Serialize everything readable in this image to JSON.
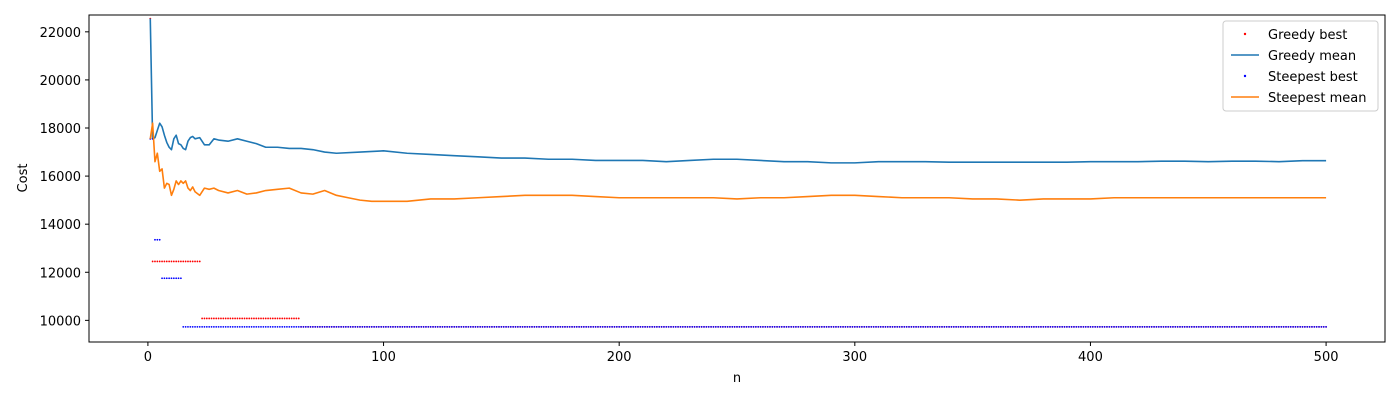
{
  "chart_data": {
    "type": "line",
    "title": "",
    "xlabel": "n",
    "ylabel": "Cost",
    "xlim": [
      -25,
      525
    ],
    "ylim": [
      9100,
      22700
    ],
    "xticks": [
      0,
      100,
      200,
      300,
      400,
      500
    ],
    "xtick_labels": [
      "0",
      "100",
      "200",
      "300",
      "400",
      "500"
    ],
    "yticks": [
      10000,
      12000,
      14000,
      16000,
      18000,
      20000,
      22000
    ],
    "ytick_labels": [
      "10000",
      "12000",
      "14000",
      "16000",
      "18000",
      "20000",
      "22000"
    ],
    "grid": false,
    "legend_position": "top-right",
    "series": [
      {
        "name": "Greedy best",
        "kind": "step-points",
        "color": "#ff0000",
        "n_max": 500,
        "segments": [
          {
            "from": 1,
            "to": 1,
            "value": 22550
          },
          {
            "from": 2,
            "to": 22,
            "value": 12450
          },
          {
            "from": 23,
            "to": 64,
            "value": 10080
          },
          {
            "from": 65,
            "to": 500,
            "value": 9730
          }
        ]
      },
      {
        "name": "Greedy mean",
        "kind": "line",
        "color": "#1f77b4",
        "points": [
          [
            1,
            22550
          ],
          [
            2,
            17550
          ],
          [
            3,
            17600
          ],
          [
            4,
            17900
          ],
          [
            5,
            18200
          ],
          [
            6,
            18050
          ],
          [
            7,
            17700
          ],
          [
            8,
            17400
          ],
          [
            9,
            17200
          ],
          [
            10,
            17100
          ],
          [
            11,
            17550
          ],
          [
            12,
            17700
          ],
          [
            13,
            17350
          ],
          [
            14,
            17300
          ],
          [
            15,
            17150
          ],
          [
            16,
            17100
          ],
          [
            17,
            17450
          ],
          [
            18,
            17600
          ],
          [
            19,
            17650
          ],
          [
            20,
            17550
          ],
          [
            22,
            17600
          ],
          [
            24,
            17300
          ],
          [
            26,
            17300
          ],
          [
            28,
            17550
          ],
          [
            30,
            17500
          ],
          [
            34,
            17450
          ],
          [
            38,
            17550
          ],
          [
            42,
            17450
          ],
          [
            46,
            17350
          ],
          [
            50,
            17200
          ],
          [
            55,
            17200
          ],
          [
            60,
            17150
          ],
          [
            65,
            17150
          ],
          [
            70,
            17100
          ],
          [
            75,
            17000
          ],
          [
            80,
            16950
          ],
          [
            90,
            17000
          ],
          [
            100,
            17050
          ],
          [
            110,
            16950
          ],
          [
            120,
            16900
          ],
          [
            130,
            16850
          ],
          [
            140,
            16800
          ],
          [
            150,
            16750
          ],
          [
            160,
            16750
          ],
          [
            170,
            16700
          ],
          [
            180,
            16700
          ],
          [
            190,
            16650
          ],
          [
            200,
            16650
          ],
          [
            210,
            16650
          ],
          [
            220,
            16600
          ],
          [
            230,
            16650
          ],
          [
            240,
            16700
          ],
          [
            250,
            16700
          ],
          [
            260,
            16650
          ],
          [
            270,
            16600
          ],
          [
            280,
            16600
          ],
          [
            290,
            16550
          ],
          [
            300,
            16550
          ],
          [
            310,
            16600
          ],
          [
            320,
            16600
          ],
          [
            330,
            16600
          ],
          [
            340,
            16580
          ],
          [
            350,
            16580
          ],
          [
            360,
            16580
          ],
          [
            370,
            16580
          ],
          [
            380,
            16580
          ],
          [
            390,
            16580
          ],
          [
            400,
            16600
          ],
          [
            410,
            16600
          ],
          [
            420,
            16600
          ],
          [
            430,
            16620
          ],
          [
            440,
            16620
          ],
          [
            450,
            16600
          ],
          [
            460,
            16620
          ],
          [
            470,
            16620
          ],
          [
            480,
            16600
          ],
          [
            490,
            16640
          ],
          [
            500,
            16640
          ]
        ]
      },
      {
        "name": "Steepest best",
        "kind": "step-points",
        "color": "#0000ff",
        "n_max": 500,
        "segments": [
          {
            "from": 1,
            "to": 2,
            "value": 17550
          },
          {
            "from": 3,
            "to": 5,
            "value": 13350
          },
          {
            "from": 6,
            "to": 14,
            "value": 11750
          },
          {
            "from": 15,
            "to": 500,
            "value": 9730
          }
        ]
      },
      {
        "name": "Steepest mean",
        "kind": "line",
        "color": "#ff7f0e",
        "points": [
          [
            1,
            17550
          ],
          [
            2,
            18200
          ],
          [
            3,
            16600
          ],
          [
            4,
            16950
          ],
          [
            5,
            16200
          ],
          [
            6,
            16300
          ],
          [
            7,
            15500
          ],
          [
            8,
            15700
          ],
          [
            9,
            15650
          ],
          [
            10,
            15200
          ],
          [
            11,
            15450
          ],
          [
            12,
            15800
          ],
          [
            13,
            15650
          ],
          [
            14,
            15800
          ],
          [
            15,
            15700
          ],
          [
            16,
            15800
          ],
          [
            17,
            15500
          ],
          [
            18,
            15400
          ],
          [
            19,
            15550
          ],
          [
            20,
            15350
          ],
          [
            22,
            15200
          ],
          [
            24,
            15500
          ],
          [
            26,
            15450
          ],
          [
            28,
            15500
          ],
          [
            30,
            15400
          ],
          [
            34,
            15300
          ],
          [
            38,
            15400
          ],
          [
            42,
            15250
          ],
          [
            46,
            15300
          ],
          [
            50,
            15400
          ],
          [
            55,
            15450
          ],
          [
            60,
            15500
          ],
          [
            65,
            15300
          ],
          [
            70,
            15250
          ],
          [
            75,
            15400
          ],
          [
            80,
            15200
          ],
          [
            85,
            15100
          ],
          [
            90,
            15000
          ],
          [
            95,
            14950
          ],
          [
            100,
            14950
          ],
          [
            105,
            14950
          ],
          [
            110,
            14950
          ],
          [
            120,
            15050
          ],
          [
            130,
            15050
          ],
          [
            140,
            15100
          ],
          [
            150,
            15150
          ],
          [
            160,
            15200
          ],
          [
            170,
            15200
          ],
          [
            180,
            15200
          ],
          [
            190,
            15150
          ],
          [
            200,
            15100
          ],
          [
            210,
            15100
          ],
          [
            220,
            15100
          ],
          [
            230,
            15100
          ],
          [
            240,
            15100
          ],
          [
            250,
            15050
          ],
          [
            260,
            15100
          ],
          [
            270,
            15100
          ],
          [
            280,
            15150
          ],
          [
            290,
            15200
          ],
          [
            300,
            15200
          ],
          [
            310,
            15150
          ],
          [
            320,
            15100
          ],
          [
            330,
            15100
          ],
          [
            340,
            15100
          ],
          [
            350,
            15050
          ],
          [
            360,
            15050
          ],
          [
            370,
            15000
          ],
          [
            380,
            15050
          ],
          [
            390,
            15050
          ],
          [
            400,
            15050
          ],
          [
            410,
            15100
          ],
          [
            420,
            15100
          ],
          [
            430,
            15100
          ],
          [
            440,
            15100
          ],
          [
            450,
            15100
          ],
          [
            460,
            15100
          ],
          [
            470,
            15100
          ],
          [
            480,
            15100
          ],
          [
            490,
            15100
          ],
          [
            500,
            15100
          ]
        ]
      }
    ]
  }
}
